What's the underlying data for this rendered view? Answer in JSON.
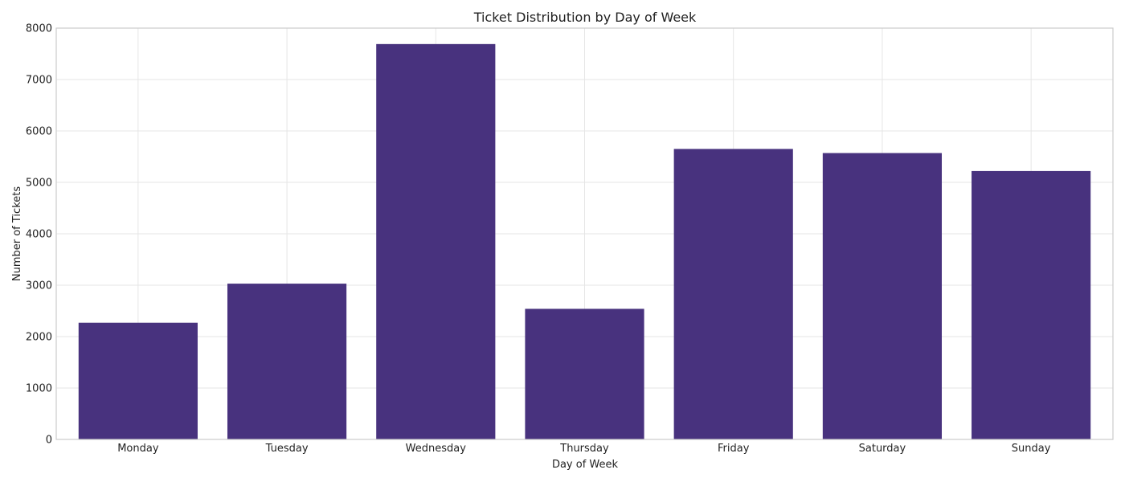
{
  "chart_data": {
    "type": "bar",
    "title": "Ticket Distribution by Day of Week",
    "xlabel": "Day of Week",
    "ylabel": "Number of Tickets",
    "categories": [
      "Monday",
      "Tuesday",
      "Wednesday",
      "Thursday",
      "Friday",
      "Saturday",
      "Sunday"
    ],
    "values": [
      2270,
      3030,
      7690,
      2540,
      5650,
      5570,
      5220
    ],
    "ylim": [
      0,
      8000
    ],
    "yticks": [
      0,
      1000,
      2000,
      3000,
      4000,
      5000,
      6000,
      7000,
      8000
    ],
    "bar_color": "#48327e",
    "grid": true,
    "legend": false
  }
}
